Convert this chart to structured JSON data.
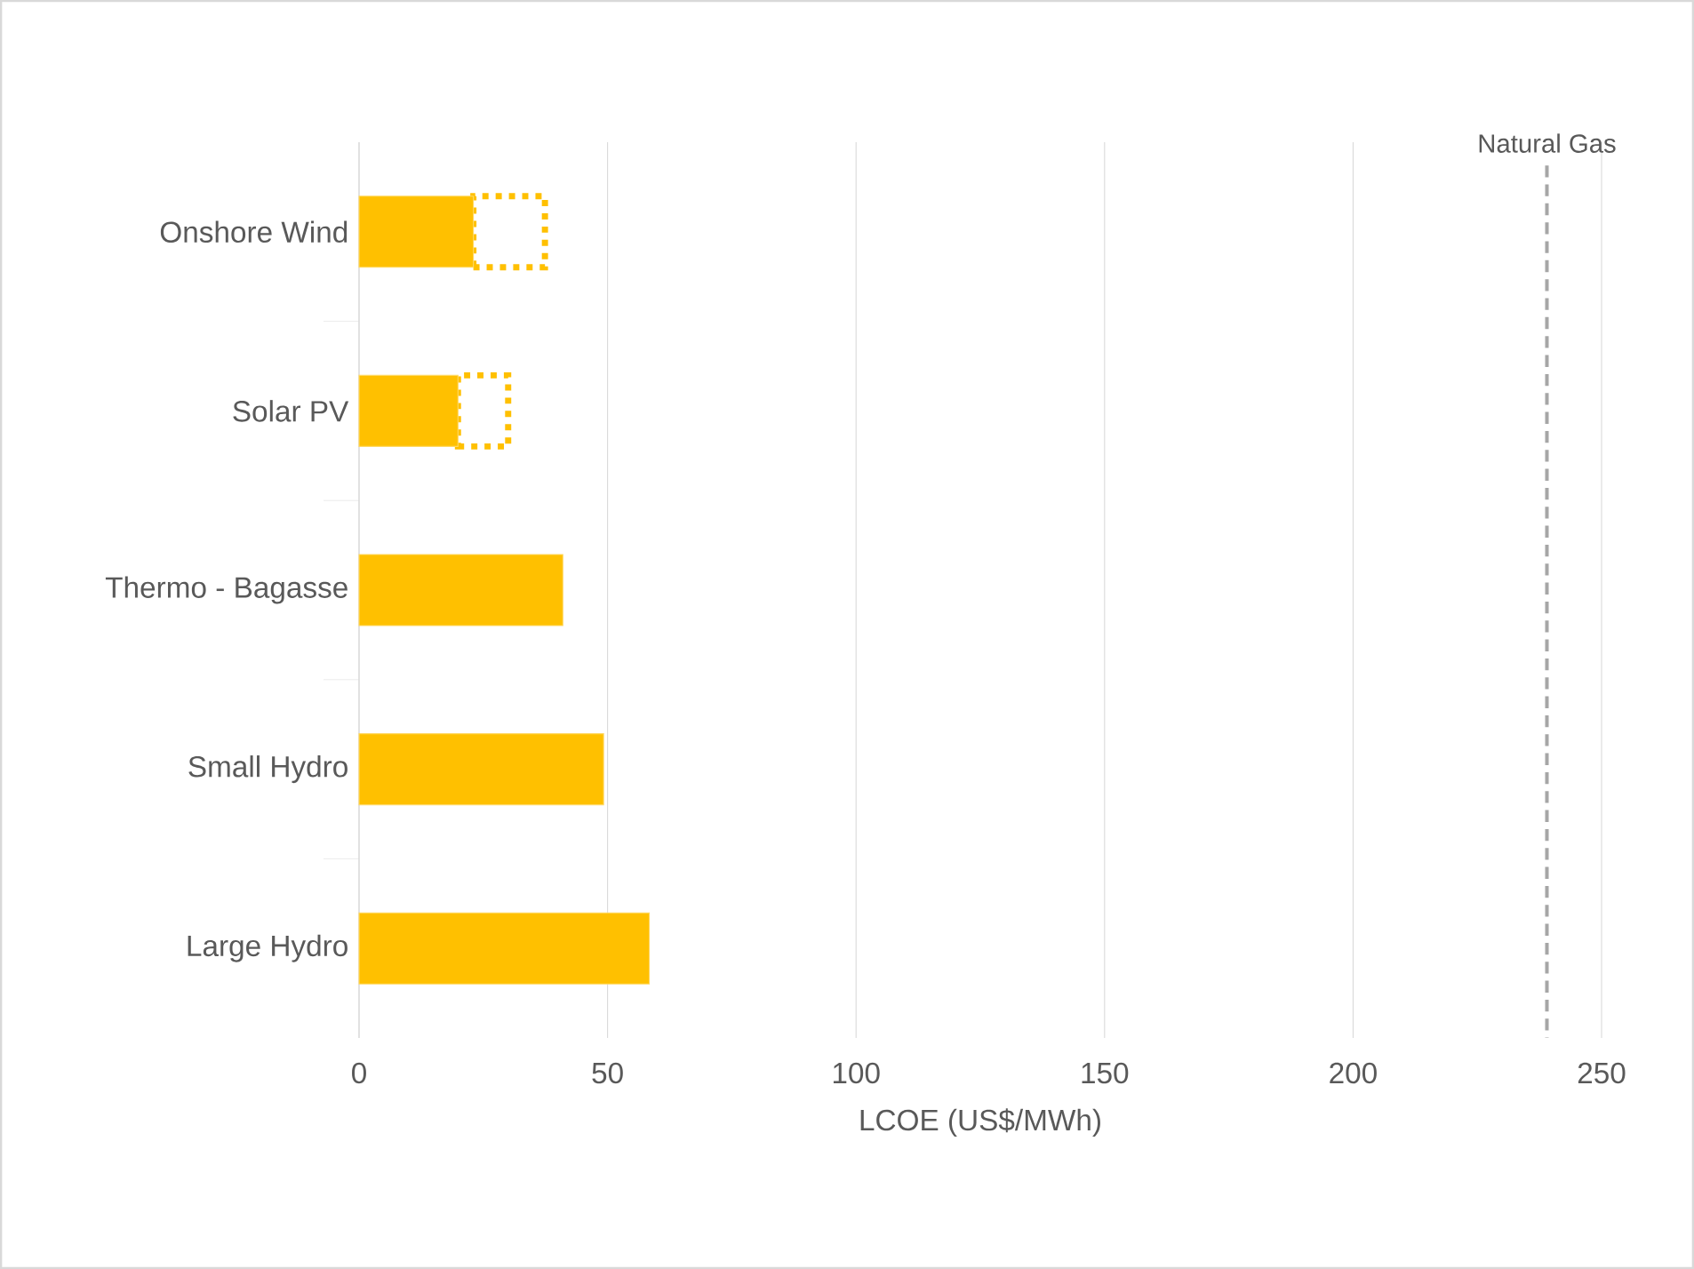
{
  "chart_data": {
    "type": "bar",
    "orientation": "horizontal",
    "stacked": true,
    "xlabel": "LCOE (US$/MWh)",
    "categories": [
      "Onshore Wind",
      "Solar PV",
      "Thermo - Bagasse",
      "Small Hydro",
      "Large Hydro"
    ],
    "series": [
      {
        "color": "#ffc000",
        "values": [
          23,
          19.9,
          41,
          49.2,
          58.4
        ]
      },
      {
        "color": "#ffc000",
        "line_style": "dotted",
        "values": [
          14.4,
          10.1,
          null,
          null,
          null
        ]
      }
    ],
    "xlim": [
      0,
      250
    ],
    "xticks": [
      0,
      50,
      100,
      150,
      200,
      250
    ],
    "grid": "x",
    "ref_lines": [
      {
        "axis": "x",
        "value": 239,
        "label": "Natural Gas",
        "color": "#a6a6a6",
        "line_style": "dashed"
      }
    ]
  }
}
